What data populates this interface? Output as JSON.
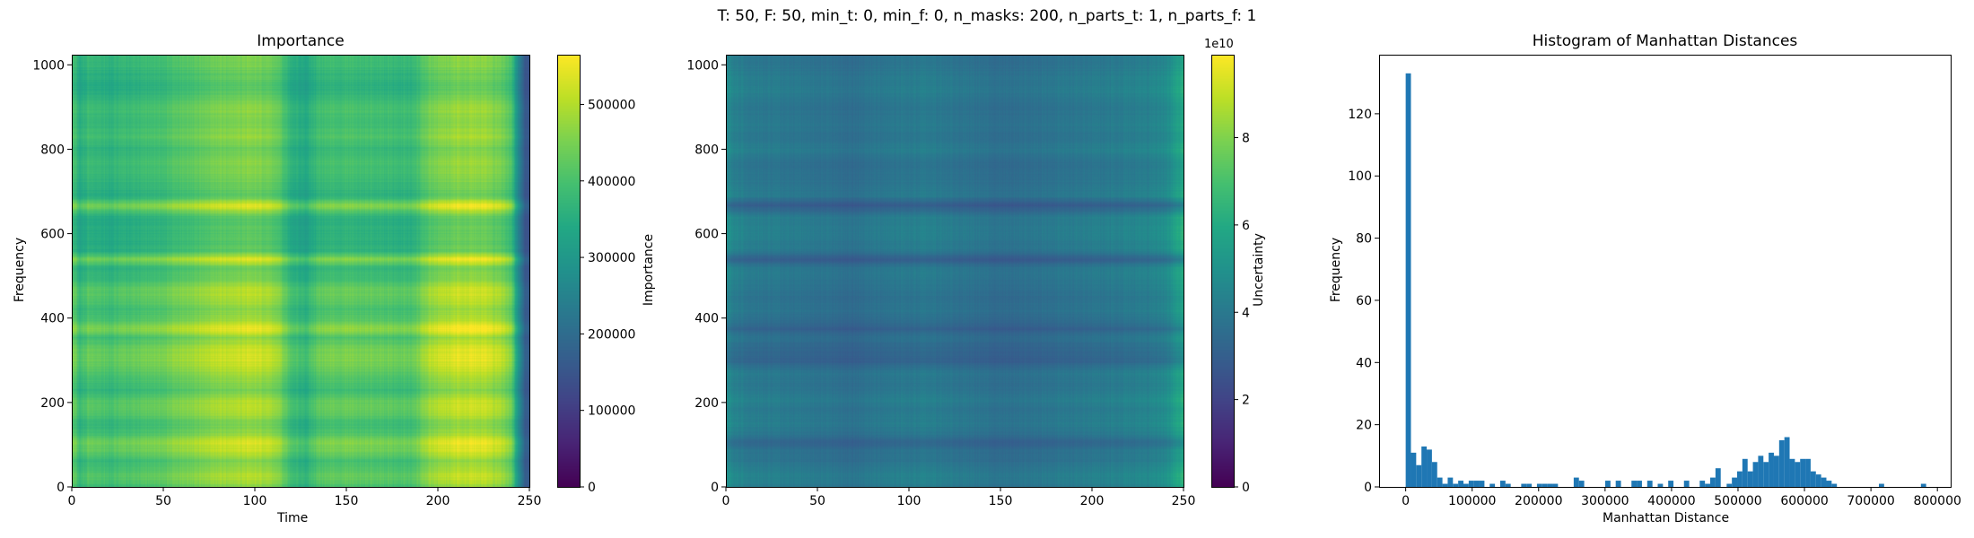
{
  "figure": {
    "suptitle": "T: 50, F: 50, min_t: 0, min_f: 0, n_masks: 200, n_parts_t: 1, n_parts_f: 1"
  },
  "chart_data": [
    {
      "type": "heatmap",
      "title": "Importance",
      "xlabel": "Time",
      "ylabel": "Frequency",
      "xlim": [
        0,
        250
      ],
      "ylim": [
        0,
        1024
      ],
      "xticks": [
        0,
        50,
        100,
        150,
        200,
        250
      ],
      "yticks": [
        0,
        200,
        400,
        600,
        800,
        1000
      ],
      "colormap": "viridis",
      "colorbar": {
        "label": "Importance",
        "range": [
          0,
          565000
        ],
        "ticks": [
          0,
          100000,
          200000,
          300000,
          400000,
          500000
        ]
      },
      "time_profile": [
        [
          0,
          0.82
        ],
        [
          4,
          0.7
        ],
        [
          10,
          0.78
        ],
        [
          20,
          0.74
        ],
        [
          30,
          0.76
        ],
        [
          40,
          0.78
        ],
        [
          50,
          0.8
        ],
        [
          65,
          0.86
        ],
        [
          80,
          0.9
        ],
        [
          100,
          0.94
        ],
        [
          112,
          0.88
        ],
        [
          120,
          0.72
        ],
        [
          128,
          0.68
        ],
        [
          135,
          0.78
        ],
        [
          150,
          0.8
        ],
        [
          170,
          0.78
        ],
        [
          185,
          0.76
        ],
        [
          195,
          0.9
        ],
        [
          210,
          0.96
        ],
        [
          225,
          0.96
        ],
        [
          235,
          0.9
        ],
        [
          240,
          0.82
        ],
        [
          244,
          0.5
        ],
        [
          247,
          0.3
        ],
        [
          250,
          0.25
        ]
      ],
      "freq_profile": [
        [
          0,
          0.72
        ],
        [
          20,
          0.85
        ],
        [
          45,
          0.8
        ],
        [
          60,
          0.72
        ],
        [
          90,
          0.9
        ],
        [
          110,
          0.95
        ],
        [
          125,
          0.78
        ],
        [
          150,
          0.7
        ],
        [
          185,
          0.88
        ],
        [
          210,
          0.82
        ],
        [
          230,
          0.7
        ],
        [
          270,
          0.82
        ],
        [
          300,
          0.93
        ],
        [
          330,
          0.9
        ],
        [
          355,
          0.75
        ],
        [
          375,
          1.0
        ],
        [
          395,
          0.82
        ],
        [
          420,
          0.74
        ],
        [
          450,
          0.85
        ],
        [
          470,
          0.86
        ],
        [
          495,
          0.7
        ],
        [
          520,
          0.66
        ],
        [
          540,
          0.98
        ],
        [
          560,
          0.62
        ],
        [
          600,
          0.6
        ],
        [
          640,
          0.6
        ],
        [
          668,
          0.98
        ],
        [
          690,
          0.6
        ],
        [
          730,
          0.7
        ],
        [
          770,
          0.74
        ],
        [
          800,
          0.66
        ],
        [
          830,
          0.78
        ],
        [
          860,
          0.7
        ],
        [
          900,
          0.76
        ],
        [
          940,
          0.6
        ],
        [
          980,
          0.64
        ],
        [
          1000,
          0.7
        ],
        [
          1024,
          0.72
        ]
      ]
    },
    {
      "type": "heatmap",
      "title": "",
      "xlabel": "",
      "ylabel": "",
      "xlim": [
        0,
        250
      ],
      "ylim": [
        0,
        1024
      ],
      "xticks": [
        0,
        50,
        100,
        150,
        200,
        250
      ],
      "yticks": [
        0,
        200,
        400,
        600,
        800,
        1000
      ],
      "colormap": "viridis",
      "colorbar": {
        "label": "Uncertainty",
        "range": [
          0,
          9.9
        ],
        "offset_text": "1e10",
        "ticks": [
          0,
          2,
          4,
          6,
          8
        ]
      },
      "time_profile": [
        [
          0,
          0.6
        ],
        [
          5,
          0.55
        ],
        [
          15,
          0.52
        ],
        [
          30,
          0.5
        ],
        [
          50,
          0.48
        ],
        [
          70,
          0.45
        ],
        [
          90,
          0.5
        ],
        [
          110,
          0.52
        ],
        [
          130,
          0.48
        ],
        [
          150,
          0.45
        ],
        [
          170,
          0.47
        ],
        [
          190,
          0.5
        ],
        [
          210,
          0.52
        ],
        [
          230,
          0.55
        ],
        [
          240,
          0.6
        ],
        [
          246,
          0.72
        ],
        [
          250,
          0.8
        ]
      ],
      "freq_profile": [
        [
          0,
          0.55
        ],
        [
          20,
          0.65
        ],
        [
          45,
          0.6
        ],
        [
          60,
          0.5
        ],
        [
          90,
          0.45
        ],
        [
          105,
          0.3
        ],
        [
          125,
          0.5
        ],
        [
          150,
          0.6
        ],
        [
          185,
          0.55
        ],
        [
          210,
          0.62
        ],
        [
          240,
          0.5
        ],
        [
          270,
          0.55
        ],
        [
          300,
          0.28
        ],
        [
          330,
          0.35
        ],
        [
          355,
          0.45
        ],
        [
          375,
          0.25
        ],
        [
          395,
          0.42
        ],
        [
          420,
          0.5
        ],
        [
          450,
          0.45
        ],
        [
          470,
          0.5
        ],
        [
          495,
          0.55
        ],
        [
          520,
          0.55
        ],
        [
          540,
          0.22
        ],
        [
          560,
          0.55
        ],
        [
          600,
          0.62
        ],
        [
          640,
          0.6
        ],
        [
          668,
          0.2
        ],
        [
          690,
          0.55
        ],
        [
          730,
          0.5
        ],
        [
          770,
          0.45
        ],
        [
          800,
          0.6
        ],
        [
          830,
          0.5
        ],
        [
          860,
          0.55
        ],
        [
          900,
          0.5
        ],
        [
          940,
          0.6
        ],
        [
          980,
          0.55
        ],
        [
          1000,
          0.5
        ],
        [
          1024,
          0.5
        ]
      ]
    },
    {
      "type": "bar",
      "title": "Histogram of Manhattan Distances",
      "xlabel": "Manhattan Distance",
      "ylabel": "Frequency",
      "xlim": [
        -40000,
        820000
      ],
      "ylim": [
        0,
        139
      ],
      "xticks": [
        0,
        100000,
        200000,
        300000,
        400000,
        500000,
        600000,
        700000,
        800000
      ],
      "yticks": [
        0,
        20,
        40,
        60,
        80,
        100,
        120
      ],
      "bin_width": 7900,
      "bar_color": "#1f77b4",
      "bins": [
        [
          0,
          133
        ],
        [
          7900,
          11
        ],
        [
          15800,
          7
        ],
        [
          23700,
          13
        ],
        [
          31600,
          12
        ],
        [
          39500,
          8
        ],
        [
          47400,
          3
        ],
        [
          55300,
          1
        ],
        [
          63200,
          3
        ],
        [
          71100,
          1
        ],
        [
          79000,
          2
        ],
        [
          86900,
          1
        ],
        [
          94800,
          2
        ],
        [
          102700,
          2
        ],
        [
          110600,
          2
        ],
        [
          126400,
          1
        ],
        [
          142200,
          2
        ],
        [
          150100,
          1
        ],
        [
          173800,
          1
        ],
        [
          181700,
          1
        ],
        [
          197500,
          1
        ],
        [
          205400,
          1
        ],
        [
          213300,
          1
        ],
        [
          221200,
          1
        ],
        [
          252800,
          3
        ],
        [
          260700,
          2
        ],
        [
          300200,
          2
        ],
        [
          316000,
          2
        ],
        [
          339700,
          2
        ],
        [
          347600,
          2
        ],
        [
          363400,
          2
        ],
        [
          379200,
          1
        ],
        [
          395000,
          2
        ],
        [
          418700,
          2
        ],
        [
          442400,
          2
        ],
        [
          450300,
          1
        ],
        [
          458200,
          3
        ],
        [
          466100,
          6
        ],
        [
          482900,
          1
        ],
        [
          490800,
          3
        ],
        [
          498700,
          5
        ],
        [
          506600,
          9
        ],
        [
          514500,
          5
        ],
        [
          522400,
          8
        ],
        [
          530300,
          10
        ],
        [
          538200,
          8
        ],
        [
          546100,
          11
        ],
        [
          554000,
          10
        ],
        [
          561900,
          15
        ],
        [
          569800,
          16
        ],
        [
          577700,
          9
        ],
        [
          585600,
          8
        ],
        [
          593500,
          9
        ],
        [
          601400,
          9
        ],
        [
          609300,
          5
        ],
        [
          617200,
          4
        ],
        [
          625100,
          3
        ],
        [
          633000,
          2
        ],
        [
          640900,
          1
        ],
        [
          712000,
          1
        ],
        [
          775200,
          1
        ]
      ]
    }
  ]
}
